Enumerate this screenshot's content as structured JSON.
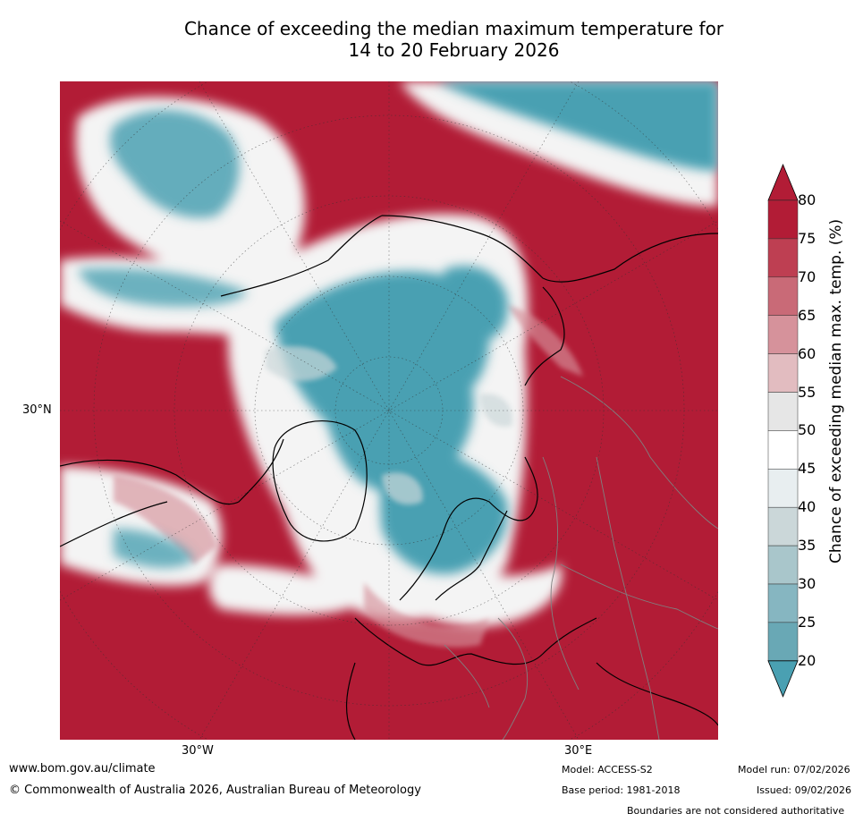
{
  "title_line1": "Chance of exceeding the median maximum temperature for",
  "title_line2": "14 to 20 February 2026",
  "map": {
    "projection": "north-polar-stereographic",
    "lat_label": "30°N",
    "lon_labels": [
      "30°W",
      "30°E"
    ],
    "colors": {
      "warm": "#b21c36",
      "cool": "#4aa0b2",
      "neutral": "#ffffff",
      "land_outline": "#000000",
      "border": "#808080"
    }
  },
  "colorbar": {
    "title": "Chance of exceeding median max. temp. (%)",
    "ticks": [
      "80",
      "75",
      "70",
      "65",
      "60",
      "55",
      "50",
      "45",
      "40",
      "35",
      "30",
      "25",
      "20"
    ],
    "colors": [
      "#b21c36",
      "#be3f52",
      "#c96a77",
      "#d6929b",
      "#e2bcc0",
      "#e6e6e6",
      "#ffffff",
      "#e8eef0",
      "#cbd7d9",
      "#a9c6cb",
      "#86b6c1",
      "#69a8b5",
      "#4aa0b2"
    ],
    "extend": "both"
  },
  "footer": {
    "url": "www.bom.gov.au/climate",
    "copyright": "© Commonwealth of Australia 2026, Australian Bureau of Meteorology",
    "model": "Model: ACCESS-S2",
    "model_run": "Model run: 07/02/2026",
    "base_period": "Base period: 1981-2018",
    "issued": "Issued: 09/02/2026",
    "disclaimer": "Boundaries are not considered authoritative"
  }
}
